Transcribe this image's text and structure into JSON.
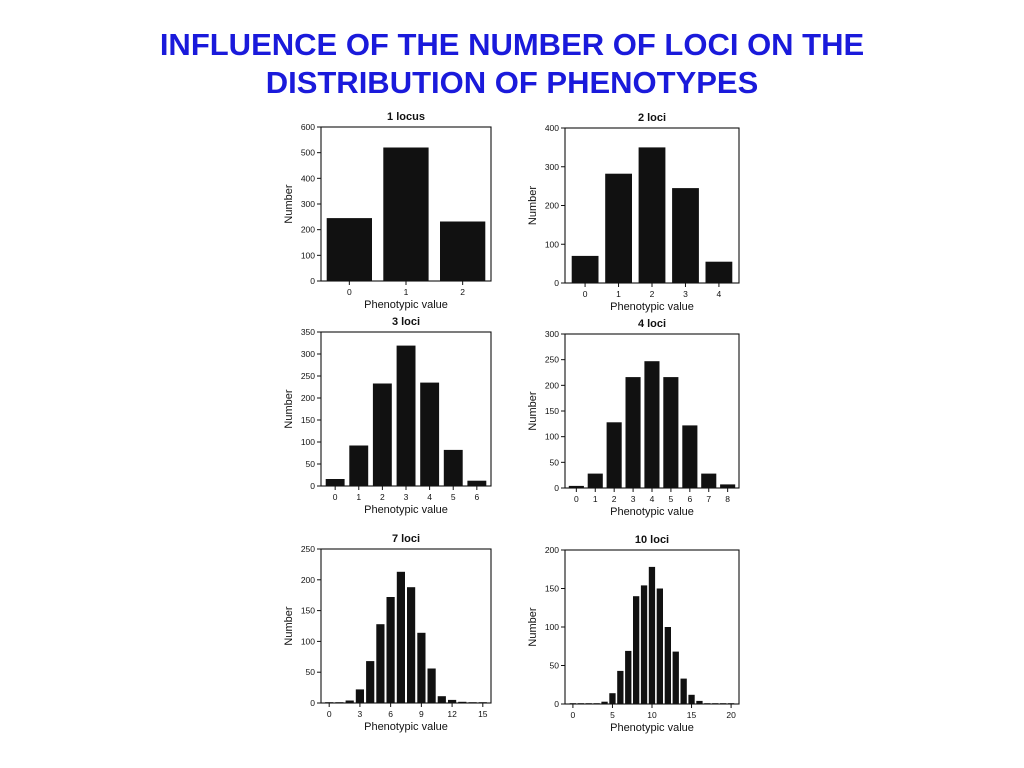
{
  "slide": {
    "title_line1": "INFLUENCE OF THE NUMBER OF LOCI ON THE",
    "title_line2": "DISTRIBUTION OF PHENOTYPES",
    "title_color": "#1a1adb",
    "bar_color": "#111111"
  },
  "chart_data": [
    {
      "type": "bar",
      "title": "1 locus",
      "xlabel": "Phenotypic value",
      "ylabel": "Number",
      "ylim": [
        0,
        600
      ],
      "yticks": [
        0,
        100,
        200,
        300,
        400,
        500,
        600
      ],
      "xlim": [
        -0.5,
        2.5
      ],
      "xticks": [
        0,
        1,
        2
      ],
      "x": [
        0,
        1,
        2
      ],
      "values": [
        245,
        520,
        232
      ],
      "bar_width": 0.8,
      "grid": false
    },
    {
      "type": "bar",
      "title": "2 loci",
      "xlabel": "Phenotypic value",
      "ylabel": "Number",
      "ylim": [
        0,
        400
      ],
      "yticks": [
        0,
        100,
        200,
        300,
        400
      ],
      "xlim": [
        -0.6,
        4.6
      ],
      "xticks": [
        0,
        1,
        2,
        3,
        4
      ],
      "x": [
        0,
        1,
        2,
        3,
        4
      ],
      "values": [
        70,
        282,
        350,
        245,
        55
      ],
      "bar_width": 0.8,
      "grid": false
    },
    {
      "type": "bar",
      "title": "3 loci",
      "xlabel": "Phenotypic value",
      "ylabel": "Number",
      "ylim": [
        0,
        350
      ],
      "yticks": [
        0,
        50,
        100,
        150,
        200,
        250,
        300,
        350
      ],
      "xlim": [
        -0.6,
        6.6
      ],
      "xticks": [
        0,
        1,
        2,
        3,
        4,
        5,
        6
      ],
      "x": [
        0,
        1,
        2,
        3,
        4,
        5,
        6
      ],
      "values": [
        16,
        92,
        233,
        319,
        235,
        82,
        12
      ],
      "bar_width": 0.8,
      "grid": false
    },
    {
      "type": "bar",
      "title": "4 loci",
      "xlabel": "Phenotypic value",
      "ylabel": "Number",
      "ylim": [
        0,
        300
      ],
      "yticks": [
        0,
        50,
        100,
        150,
        200,
        250,
        300
      ],
      "xlim": [
        -0.6,
        8.6
      ],
      "xticks": [
        0,
        1,
        2,
        3,
        4,
        5,
        6,
        7,
        8
      ],
      "x": [
        0,
        1,
        2,
        3,
        4,
        5,
        6,
        7,
        8
      ],
      "values": [
        4,
        28,
        128,
        216,
        247,
        216,
        122,
        28,
        7
      ],
      "bar_width": 0.8,
      "grid": false
    },
    {
      "type": "bar",
      "title": "7 loci",
      "xlabel": "Phenotypic value",
      "ylabel": "Number",
      "ylim": [
        0,
        250
      ],
      "yticks": [
        0,
        50,
        100,
        150,
        200,
        250
      ],
      "xlim": [
        -0.8,
        15.8
      ],
      "xticks": [
        0,
        3,
        6,
        9,
        12,
        15
      ],
      "x": [
        0,
        1,
        2,
        3,
        4,
        5,
        6,
        7,
        8,
        9,
        10,
        11,
        12,
        13,
        14,
        15
      ],
      "values": [
        0.3,
        1,
        4,
        22,
        68,
        128,
        172,
        213,
        188,
        114,
        56,
        11,
        5,
        2,
        1,
        0.3
      ],
      "bar_width": 0.8,
      "grid": false
    },
    {
      "type": "bar",
      "title": "10 loci",
      "xlabel": "Phenotypic value",
      "ylabel": "Number",
      "ylim": [
        0,
        200
      ],
      "yticks": [
        0,
        50,
        100,
        150,
        200
      ],
      "xlim": [
        -1,
        21
      ],
      "xticks": [
        0,
        5,
        10,
        15,
        20
      ],
      "x": [
        0,
        1,
        2,
        3,
        4,
        5,
        6,
        7,
        8,
        9,
        10,
        11,
        12,
        13,
        14,
        15,
        16,
        17,
        18,
        19,
        20
      ],
      "values": [
        0.3,
        0.3,
        0.5,
        1,
        3,
        14,
        43,
        69,
        140,
        154,
        178,
        150,
        100,
        68,
        33,
        12,
        4,
        1,
        0.5,
        0.3,
        0.3
      ],
      "bar_width": 0.8,
      "grid": false
    }
  ]
}
